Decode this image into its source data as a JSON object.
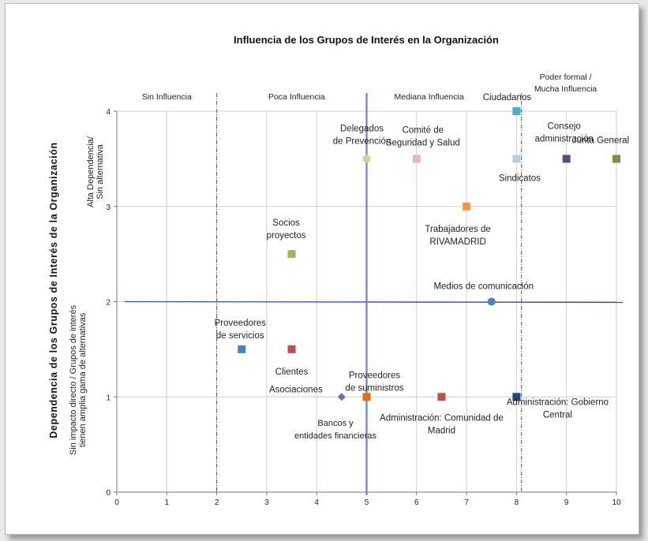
{
  "chart_data": {
    "type": "scatter",
    "title": "Influencia de los Grupos de Interés en la Organización",
    "ylabel_main": "Dependencia de los Grupos de Interés de la Organización",
    "ylabel_high": [
      "Alta Dependencia/",
      "Sin alternativa"
    ],
    "ylabel_low": [
      "Sin impacto directo / Grupos de interés",
      "tienen amplia gama de alternativas"
    ],
    "xlim": [
      0,
      10
    ],
    "ylim": [
      0,
      4
    ],
    "x_ticks": [
      "0",
      "1",
      "2",
      "3",
      "4",
      "5",
      "6",
      "7",
      "8",
      "9",
      "10"
    ],
    "y_ticks": [
      "0",
      "1",
      "2",
      "3",
      "4"
    ],
    "grid": true,
    "zones": [
      {
        "label": [
          "Sin Influencia"
        ],
        "x": 1
      },
      {
        "label": [
          "Poca Influencia"
        ],
        "x": 3.6
      },
      {
        "label": [
          "Mediana Influencia"
        ],
        "x": 6.25
      },
      {
        "label": [
          "Poder formal /",
          "Mucha Influencia"
        ],
        "x": 8.35
      }
    ],
    "zone_dividers": [
      2,
      8.1
    ],
    "median_lines": {
      "x": 5,
      "y": 2
    },
    "points": [
      {
        "label": [
          "Ciudadanos"
        ],
        "x": 8,
        "y": 4,
        "marker": "square",
        "color": "#4bacc6"
      },
      {
        "label": [
          "Delegados",
          "de Prevención"
        ],
        "x": 5,
        "y": 3.5,
        "marker": "circle",
        "color": "#c4d79b"
      },
      {
        "label": [
          "Comité de",
          "Seguridad y Salud"
        ],
        "x": 6,
        "y": 3.5,
        "marker": "square",
        "color": "#e6b9b8"
      },
      {
        "label": [
          "Sindicatos"
        ],
        "x": 8,
        "y": 3.5,
        "marker": "square",
        "color": "#b9cde5"
      },
      {
        "label": [
          "Consejo",
          "administración"
        ],
        "x": 9,
        "y": 3.5,
        "marker": "square",
        "color": "#604a7b"
      },
      {
        "label": [
          "Junta General"
        ],
        "x": 10,
        "y": 3.5,
        "marker": "square",
        "color": "#77933c"
      },
      {
        "label": [
          "Trabajadores de",
          "RIVAMADRID"
        ],
        "x": 7,
        "y": 3,
        "marker": "square",
        "color": "#f79646"
      },
      {
        "label": [
          "Socios",
          "proyectos"
        ],
        "x": 3.5,
        "y": 2.5,
        "marker": "square",
        "color": "#9bbb59"
      },
      {
        "label": [
          "Medios de comunicación"
        ],
        "x": 7.5,
        "y": 2,
        "marker": "circle",
        "color": "#4f81bd"
      },
      {
        "label": [
          "Proveedores",
          "de servicios"
        ],
        "x": 2.5,
        "y": 1.5,
        "marker": "square",
        "color": "#4f81bd"
      },
      {
        "label": [
          "Clientes"
        ],
        "x": 3.5,
        "y": 1.5,
        "marker": "square",
        "color": "#c0504d"
      },
      {
        "label": [
          "Asociaciones"
        ],
        "x": 4.5,
        "y": 1,
        "marker": "diamond",
        "color": "#8064a2"
      },
      {
        "label": [
          "Proveedores",
          "de suministros"
        ],
        "x": 5,
        "y": 1,
        "marker": "square",
        "color": "#e46c0a"
      },
      {
        "label": [
          "Bancos y",
          "entidades financieras"
        ],
        "x": null,
        "y": null,
        "marker": "none",
        "color": ""
      },
      {
        "label": [
          "Administración: Comunidad de",
          "Madrid"
        ],
        "x": 6.5,
        "y": 1,
        "marker": "square",
        "color": "#c0504d"
      },
      {
        "label": [
          "Administración: Gobierno",
          "Central"
        ],
        "x": 8,
        "y": 1,
        "marker": "square",
        "color": "#1f497d"
      }
    ]
  }
}
